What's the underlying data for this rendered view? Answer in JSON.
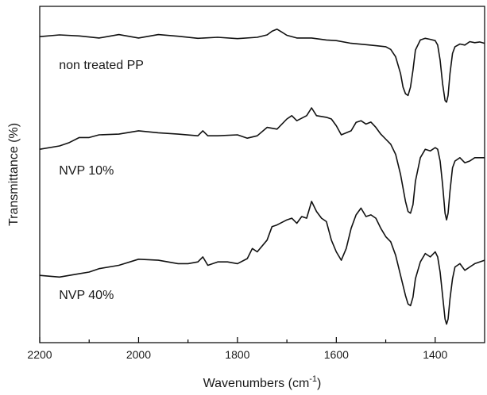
{
  "chart_data": {
    "type": "line",
    "title": "",
    "xlabel": "Wavenumbers (cm",
    "xlabel_superscript": "-1",
    "xlabel_suffix": ")",
    "ylabel": "Transmittance (%)",
    "xlim": [
      2200,
      1300
    ],
    "x_reversed": true,
    "ylim": [
      0,
      100
    ],
    "y_ticks_labeled": false,
    "grid": false,
    "legend": "none",
    "x_ticks": [
      2200,
      2000,
      1800,
      1600,
      1400
    ],
    "x_tick_labels": [
      "2200",
      "2000",
      "1800",
      "1600",
      "1400"
    ],
    "series": [
      {
        "label": "non treated PP",
        "x": [
          2200,
          2160,
          2120,
          2080,
          2040,
          2000,
          1960,
          1920,
          1880,
          1840,
          1800,
          1760,
          1740,
          1730,
          1720,
          1710,
          1700,
          1680,
          1650,
          1620,
          1600,
          1570,
          1540,
          1520,
          1500,
          1490,
          1480,
          1470,
          1465,
          1460,
          1455,
          1450,
          1445,
          1440,
          1430,
          1420,
          1410,
          1400,
          1395,
          1390,
          1385,
          1380,
          1377,
          1374,
          1370,
          1365,
          1360,
          1350,
          1340,
          1330,
          1320,
          1310,
          1300
        ],
        "y": [
          91,
          91.5,
          91.2,
          90.6,
          91.6,
          90.6,
          91.6,
          91.1,
          90.5,
          90.8,
          90.4,
          90.8,
          91.5,
          92.6,
          93.2,
          92.3,
          91.4,
          90.6,
          90.6,
          90.0,
          89.8,
          89.0,
          88.6,
          88.3,
          88.0,
          87.2,
          85.0,
          80.0,
          76.0,
          74.0,
          73.5,
          76.0,
          81.0,
          87.0,
          90.0,
          90.5,
          90.2,
          89.8,
          88.5,
          84.0,
          77.0,
          72.0,
          71.5,
          73.5,
          80.0,
          86.0,
          88.0,
          88.8,
          88.5,
          89.5,
          89.2,
          89.4,
          89.0
        ]
      },
      {
        "label": "NVP 10%",
        "x": [
          2200,
          2160,
          2140,
          2120,
          2100,
          2080,
          2040,
          2000,
          1960,
          1920,
          1880,
          1870,
          1860,
          1840,
          1800,
          1780,
          1760,
          1740,
          1720,
          1700,
          1690,
          1680,
          1660,
          1650,
          1640,
          1620,
          1610,
          1600,
          1590,
          1570,
          1560,
          1550,
          1540,
          1530,
          1520,
          1510,
          1500,
          1490,
          1480,
          1470,
          1460,
          1455,
          1450,
          1445,
          1440,
          1430,
          1420,
          1410,
          1400,
          1395,
          1390,
          1385,
          1380,
          1377,
          1374,
          1370,
          1365,
          1360,
          1350,
          1340,
          1330,
          1320,
          1310,
          1300
        ],
        "y": [
          57.5,
          58.5,
          59.5,
          61.0,
          61.0,
          61.8,
          62.0,
          63.0,
          62.4,
          62.0,
          61.5,
          63.0,
          61.5,
          61.5,
          61.8,
          60.8,
          61.5,
          64.0,
          63.5,
          66.5,
          67.5,
          66.0,
          67.5,
          69.8,
          67.5,
          67.0,
          66.5,
          64.5,
          61.8,
          63.0,
          65.5,
          66.0,
          65.0,
          65.6,
          64.0,
          62.0,
          60.5,
          59.0,
          56.0,
          50.0,
          42.0,
          39.0,
          38.5,
          41.0,
          48.0,
          55.0,
          57.5,
          57.0,
          58.0,
          57.5,
          54.0,
          47.0,
          38.5,
          36.5,
          38.5,
          45.0,
          52.0,
          54.0,
          55.0,
          53.5,
          54.0,
          55.0,
          55.0,
          55.0
        ]
      },
      {
        "label": "NVP 40%",
        "x": [
          2200,
          2160,
          2120,
          2100,
          2080,
          2040,
          2000,
          1960,
          1920,
          1900,
          1880,
          1870,
          1860,
          1840,
          1820,
          1800,
          1780,
          1770,
          1760,
          1740,
          1730,
          1720,
          1700,
          1690,
          1680,
          1670,
          1660,
          1650,
          1640,
          1630,
          1620,
          1610,
          1600,
          1590,
          1580,
          1570,
          1560,
          1550,
          1540,
          1530,
          1520,
          1510,
          1500,
          1490,
          1480,
          1470,
          1460,
          1455,
          1450,
          1445,
          1440,
          1430,
          1420,
          1410,
          1400,
          1395,
          1390,
          1385,
          1380,
          1377,
          1374,
          1370,
          1365,
          1360,
          1350,
          1340,
          1330,
          1320,
          1310,
          1300
        ],
        "y": [
          20.0,
          19.5,
          20.5,
          21.0,
          22.0,
          23.0,
          24.8,
          24.5,
          23.5,
          23.5,
          24.0,
          25.5,
          23.0,
          24.0,
          24.0,
          23.5,
          25.0,
          28.0,
          27.0,
          30.5,
          34.5,
          35.0,
          36.5,
          37.0,
          35.5,
          37.5,
          37.0,
          42.0,
          39.0,
          37.0,
          36.0,
          30.5,
          27.0,
          24.5,
          28.0,
          34.0,
          38.0,
          40.0,
          37.5,
          38.0,
          37.0,
          34.0,
          31.5,
          30.0,
          26.0,
          20.0,
          14.0,
          11.5,
          11.0,
          13.5,
          19.0,
          24.0,
          26.5,
          25.5,
          27.0,
          25.5,
          21.0,
          14.0,
          7.0,
          5.5,
          7.0,
          13.0,
          19.0,
          22.5,
          23.5,
          21.5,
          22.5,
          23.5,
          24.0,
          24.5
        ]
      }
    ]
  }
}
